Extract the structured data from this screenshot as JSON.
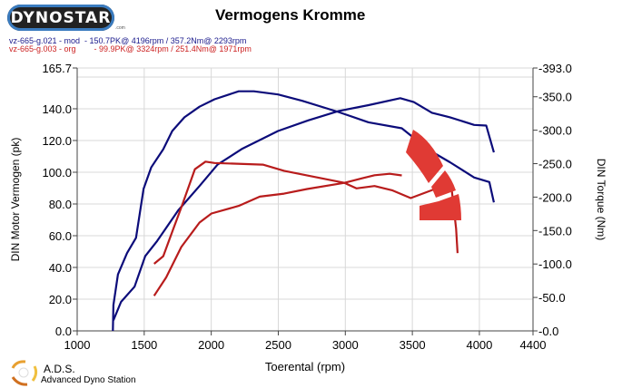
{
  "header": {
    "logo_text": "DYNOSTAR",
    "logo_sub": ".com",
    "title": "Vermogens Kromme"
  },
  "legend": [
    {
      "label": "vz-665-g.021 - mod  - 150.7PK@ 4196rpm / 357.2Nm@ 2293rpm",
      "color": "#1a1a8c"
    },
    {
      "label": "vz-665-g.003 - org        - 99.9PK@ 3324rpm / 251.4Nm@ 1971rpm",
      "color": "#cc2222"
    }
  ],
  "footer": {
    "brand": "A.D.S.",
    "subtitle": "Advanced Dyno Station"
  },
  "chart_data": {
    "type": "line",
    "title": "Vermogens Kromme",
    "xlabel": "Toerental (rpm)",
    "ylabel": "DIN Motor Vermogen (pk)",
    "y2label": "DIN Torque (Nm)",
    "xlim": [
      1000,
      4400
    ],
    "ylim": [
      0,
      165.7
    ],
    "y2lim": [
      0,
      393
    ],
    "grid": true,
    "xticks": [
      "1000",
      "1500",
      "2000",
      "2500",
      "3000",
      "3500",
      "4000",
      "4400"
    ],
    "xtick_values": [
      1000,
      1500,
      2000,
      2500,
      3000,
      3500,
      4000,
      4400
    ],
    "yticks": [
      "0.0",
      "20.0",
      "40.0",
      "60.0",
      "80.0",
      "100.0",
      "120.0",
      "140.0",
      "165.7"
    ],
    "ytick_values": [
      0,
      20,
      40,
      60,
      80,
      100,
      120,
      140,
      165.7
    ],
    "y2ticks": [
      "-0.0",
      "-50.0",
      "-100.0",
      "-150.0",
      "-200.0",
      "-250.0",
      "-300.0",
      "-350.0",
      "-393.0"
    ],
    "y2tick_values": [
      0,
      50,
      100,
      150,
      200,
      250,
      300,
      350,
      393
    ],
    "series": [
      {
        "name": "mod torque",
        "color": "#0c0c7a",
        "points": [
          [
            1266,
            0
          ],
          [
            1270,
            16.3
          ],
          [
            1304,
            35.6
          ],
          [
            1372,
            49
          ],
          [
            1439,
            58.7
          ],
          [
            1495,
            89.5
          ],
          [
            1552,
            103
          ],
          [
            1642,
            114.5
          ],
          [
            1709,
            126
          ],
          [
            1800,
            134.6
          ],
          [
            1912,
            141.3
          ],
          [
            2025,
            146
          ],
          [
            2205,
            151
          ],
          [
            2317,
            151
          ],
          [
            2498,
            149
          ],
          [
            2678,
            145
          ],
          [
            2948,
            138
          ],
          [
            3173,
            131.5
          ],
          [
            3421,
            127.7
          ],
          [
            3624,
            114
          ],
          [
            3781,
            106.3
          ],
          [
            3961,
            96.7
          ],
          [
            4074,
            93.8
          ],
          [
            4108,
            81
          ]
        ]
      },
      {
        "name": "mod power",
        "color": "#0c0c7a",
        "points": [
          [
            1270,
            6.7
          ],
          [
            1327,
            18.3
          ],
          [
            1428,
            27.9
          ],
          [
            1507,
            47.1
          ],
          [
            1597,
            56.7
          ],
          [
            1754,
            76
          ],
          [
            1912,
            91.3
          ],
          [
            2047,
            104.8
          ],
          [
            2227,
            114.6
          ],
          [
            2498,
            126
          ],
          [
            2723,
            132.7
          ],
          [
            2948,
            138.5
          ],
          [
            3173,
            142.3
          ],
          [
            3410,
            146.7
          ],
          [
            3511,
            144.2
          ],
          [
            3646,
            137.5
          ],
          [
            3781,
            134.6
          ],
          [
            3961,
            129.8
          ],
          [
            4051,
            129.4
          ],
          [
            4108,
            112.5
          ]
        ]
      },
      {
        "name": "org torque",
        "color": "#b81c1c",
        "points": [
          [
            1574,
            42.3
          ],
          [
            1642,
            47.1
          ],
          [
            1709,
            62.5
          ],
          [
            1777,
            77.9
          ],
          [
            1878,
            101.9
          ],
          [
            1957,
            106.7
          ],
          [
            2025,
            105.8
          ],
          [
            2385,
            104.8
          ],
          [
            2543,
            100.9
          ],
          [
            2768,
            97.1
          ],
          [
            2993,
            93.3
          ],
          [
            3128,
            96.2
          ],
          [
            3218,
            98.1
          ],
          [
            3331,
            99
          ],
          [
            3421,
            98
          ]
        ]
      },
      {
        "name": "org power",
        "color": "#b81c1c",
        "points": [
          [
            1574,
            22.1
          ],
          [
            1664,
            33.7
          ],
          [
            1777,
            52.9
          ],
          [
            1912,
            68.3
          ],
          [
            2002,
            74
          ],
          [
            2205,
            78.8
          ],
          [
            2362,
            84.6
          ],
          [
            2543,
            86.5
          ],
          [
            2715,
            89.4
          ],
          [
            2993,
            93.3
          ],
          [
            3083,
            89.8
          ],
          [
            3218,
            91.3
          ],
          [
            3353,
            88.5
          ],
          [
            3488,
            83.7
          ],
          [
            3759,
            92.3
          ],
          [
            3793,
            89.4
          ],
          [
            3826,
            64.4
          ],
          [
            3837,
            49
          ]
        ]
      }
    ]
  }
}
